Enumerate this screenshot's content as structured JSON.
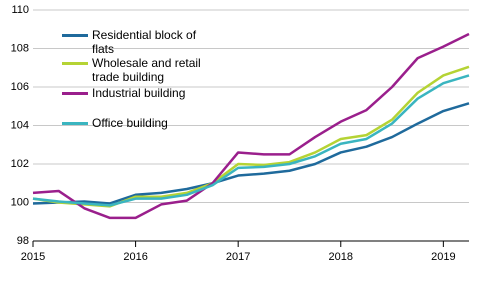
{
  "chart_data": {
    "type": "line",
    "x": [
      2015,
      2015.25,
      2015.5,
      2015.75,
      2016,
      2016.25,
      2016.5,
      2016.75,
      2017,
      2017.25,
      2017.5,
      2017.75,
      2018,
      2018.25,
      2018.5,
      2018.75,
      2019,
      2019.25
    ],
    "xlim": [
      2015,
      2019.25
    ],
    "xticks": [
      2015,
      2016,
      2017,
      2018,
      2019
    ],
    "ylim": [
      98,
      110
    ],
    "yticks": [
      98,
      100,
      102,
      104,
      106,
      108,
      110
    ],
    "grid": true,
    "legend": "upper-left",
    "series": [
      {
        "name": "Residential block of flats",
        "color": "#1f6a9c",
        "values": [
          99.95,
          100.0,
          100.05,
          99.95,
          100.4,
          100.5,
          100.7,
          101.0,
          101.4,
          101.5,
          101.65,
          102.0,
          102.6,
          102.9,
          103.4,
          104.1,
          104.75,
          105.15
        ]
      },
      {
        "name": "Wholesale and retail trade building",
        "color": "#b5d334",
        "values": [
          100.2,
          100.0,
          99.9,
          99.8,
          100.3,
          100.3,
          100.5,
          101.0,
          102.0,
          101.95,
          102.1,
          102.6,
          103.3,
          103.5,
          104.3,
          105.7,
          106.6,
          107.05
        ]
      },
      {
        "name": "Industrial building",
        "color": "#9a1f8c",
        "values": [
          100.5,
          100.6,
          99.7,
          99.2,
          99.2,
          99.9,
          100.1,
          101.0,
          102.6,
          102.5,
          102.5,
          103.4,
          104.2,
          104.8,
          106.0,
          107.5,
          108.1,
          108.75
        ]
      },
      {
        "name": "Office building",
        "color": "#3ab5c0",
        "values": [
          100.2,
          100.05,
          99.95,
          99.85,
          100.2,
          100.2,
          100.4,
          100.9,
          101.8,
          101.85,
          102.0,
          102.4,
          103.05,
          103.3,
          104.1,
          105.4,
          106.2,
          106.6
        ]
      }
    ]
  }
}
